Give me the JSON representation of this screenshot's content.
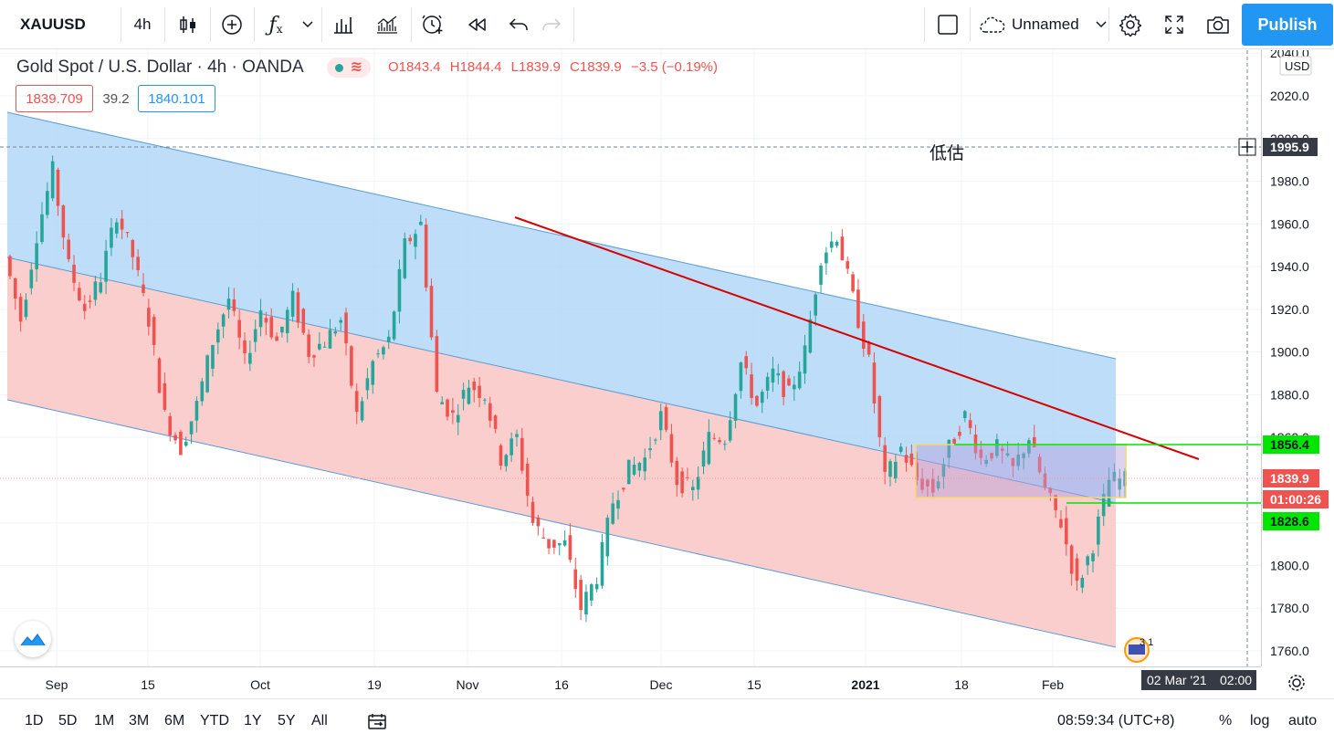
{
  "toolbar": {
    "symbol": "XAUUSD",
    "interval": "4h",
    "layout_name": "Unnamed",
    "publish_label": "Publish",
    "icons": [
      "candles-icon",
      "add-compare-icon",
      "indicators-icon",
      "chevron-down-icon",
      "templates-icon",
      "bar-replay-icon",
      "alert-icon",
      "replay-icon",
      "undo-icon",
      "redo-icon",
      "layout-square-icon",
      "cloud-icon",
      "gear-icon",
      "fullscreen-icon",
      "camera-icon"
    ]
  },
  "legend": {
    "title": "Gold Spot / U.S. Dollar · 4h · OANDA",
    "o_label": "O",
    "o": "1843.4",
    "h_label": "H",
    "h": "1844.4",
    "l_label": "L",
    "l": "1839.9",
    "c_label": "C",
    "c": "1839.9",
    "change": "−3.5 (−0.19%)",
    "bid": "1839.709",
    "spread": "39.2",
    "ask": "1840.101"
  },
  "annotation_text": "低估",
  "price_axis": {
    "currency": "USD",
    "ticks": [
      "2040.0",
      "2020.0",
      "2000.0",
      "1980.0",
      "1960.0",
      "1940.0",
      "1920.0",
      "1900.0",
      "1880.0",
      "1860.0",
      "1840.0",
      "1820.0",
      "1800.0",
      "1780.0",
      "1760.0"
    ],
    "tick_values": [
      2040,
      2020,
      2000,
      1980,
      1960,
      1940,
      1920,
      1900,
      1880,
      1860,
      1840,
      1820,
      1800,
      1780,
      1760
    ],
    "labels": {
      "crosshair": "1995.9",
      "upper_line": "1856.4",
      "last_price": "1839.9",
      "countdown": "01:00:26",
      "lower_line": "1828.6"
    }
  },
  "time_axis": {
    "labels": [
      "Sep",
      "15",
      "Oct",
      "19",
      "Nov",
      "16",
      "Dec",
      "15",
      "2021",
      "18",
      "Feb"
    ],
    "crosshair_date": "02 Mar '21",
    "crosshair_time": "02:00"
  },
  "bottombar": {
    "ranges": [
      "1D",
      "5D",
      "1M",
      "3M",
      "6M",
      "YTD",
      "1Y",
      "5Y",
      "All"
    ],
    "clock": "08:59:34 (UTC+8)",
    "percent": "%",
    "log": "log",
    "auto": "auto"
  },
  "badge_count": "3 1",
  "colors": {
    "up": "#26a69a",
    "down": "#ef5350",
    "channel_upper_fill": "#b3d7f7",
    "channel_lower_fill": "#f9c5c3",
    "trendline": "#d50000",
    "level_line": "#00e600",
    "accent": "#2196f3"
  },
  "chart_data": {
    "type": "candlestick",
    "symbol": "XAUUSD",
    "interval": "4h",
    "ylim": [
      1755,
      2045
    ],
    "price_path": [
      [
        0,
        1945
      ],
      [
        3,
        1915
      ],
      [
        6,
        1955
      ],
      [
        9,
        1985
      ],
      [
        12,
        1940
      ],
      [
        15,
        1920
      ],
      [
        18,
        1935
      ],
      [
        21,
        1965
      ],
      [
        24,
        1945
      ],
      [
        27,
        1915
      ],
      [
        30,
        1870
      ],
      [
        33,
        1855
      ],
      [
        36,
        1875
      ],
      [
        39,
        1905
      ],
      [
        42,
        1925
      ],
      [
        45,
        1895
      ],
      [
        48,
        1920
      ],
      [
        51,
        1905
      ],
      [
        54,
        1925
      ],
      [
        57,
        1900
      ],
      [
        60,
        1905
      ],
      [
        63,
        1915
      ],
      [
        66,
        1870
      ],
      [
        69,
        1895
      ],
      [
        72,
        1905
      ],
      [
        75,
        1950
      ],
      [
        78,
        1960
      ],
      [
        81,
        1880
      ],
      [
        84,
        1870
      ],
      [
        87,
        1885
      ],
      [
        90,
        1880
      ],
      [
        93,
        1850
      ],
      [
        96,
        1860
      ],
      [
        99,
        1820
      ],
      [
        102,
        1810
      ],
      [
        105,
        1810
      ],
      [
        108,
        1780
      ],
      [
        111,
        1795
      ],
      [
        114,
        1830
      ],
      [
        117,
        1845
      ],
      [
        120,
        1850
      ],
      [
        123,
        1870
      ],
      [
        126,
        1840
      ],
      [
        129,
        1835
      ],
      [
        132,
        1860
      ],
      [
        135,
        1860
      ],
      [
        138,
        1895
      ],
      [
        141,
        1875
      ],
      [
        144,
        1890
      ],
      [
        147,
        1880
      ],
      [
        150,
        1900
      ],
      [
        153,
        1945
      ],
      [
        156,
        1955
      ],
      [
        159,
        1925
      ],
      [
        162,
        1895
      ],
      [
        165,
        1840
      ],
      [
        168,
        1855
      ],
      [
        171,
        1840
      ],
      [
        174,
        1835
      ],
      [
        177,
        1855
      ],
      [
        180,
        1870
      ],
      [
        183,
        1850
      ],
      [
        186,
        1855
      ],
      [
        189,
        1845
      ],
      [
        192,
        1860
      ],
      [
        195,
        1835
      ],
      [
        198,
        1820
      ],
      [
        201,
        1790
      ],
      [
        204,
        1810
      ],
      [
        207,
        1840
      ]
    ]
  }
}
